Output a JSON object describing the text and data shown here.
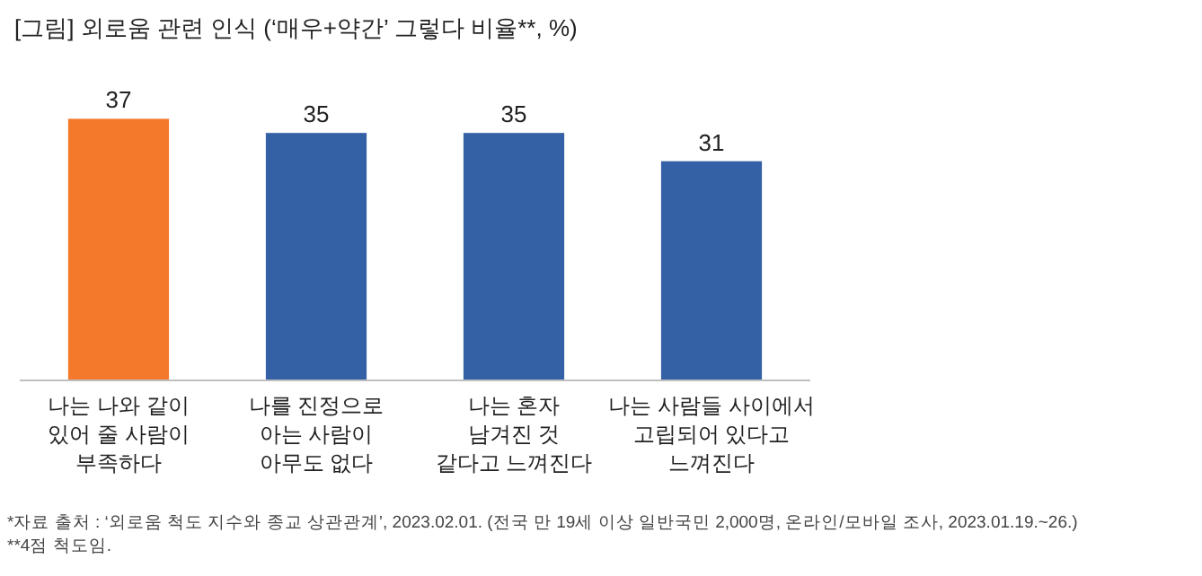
{
  "chart_data": {
    "type": "bar",
    "title": "[그림] 외로움 관련 인식 (‘매우+약간’ 그렇다 비율**, %)",
    "categories": [
      "나는 나와 같이\n있어 줄 사람이\n부족하다",
      "나를 진정으로\n아는 사람이\n아무도 없다",
      "나는 혼자\n남겨진 것\n같다고 느껴진다",
      "나는 사람들 사이에서\n고립되어 있다고\n느껴진다"
    ],
    "values": [
      37,
      35,
      35,
      31
    ],
    "colors": [
      "#f5792a",
      "#3461a6",
      "#3461a6",
      "#3461a6"
    ],
    "data_labels": true,
    "annotations": [
      "*자료 출처 : ‘외로움 척도 지수와 종교 상관관계’, 2023.02.01. (전국 만 19세 이상 일반국민 2,000명, 온라인/모바일 조사, 2023.01.19.~26.)",
      "**4점 척도임."
    ]
  }
}
